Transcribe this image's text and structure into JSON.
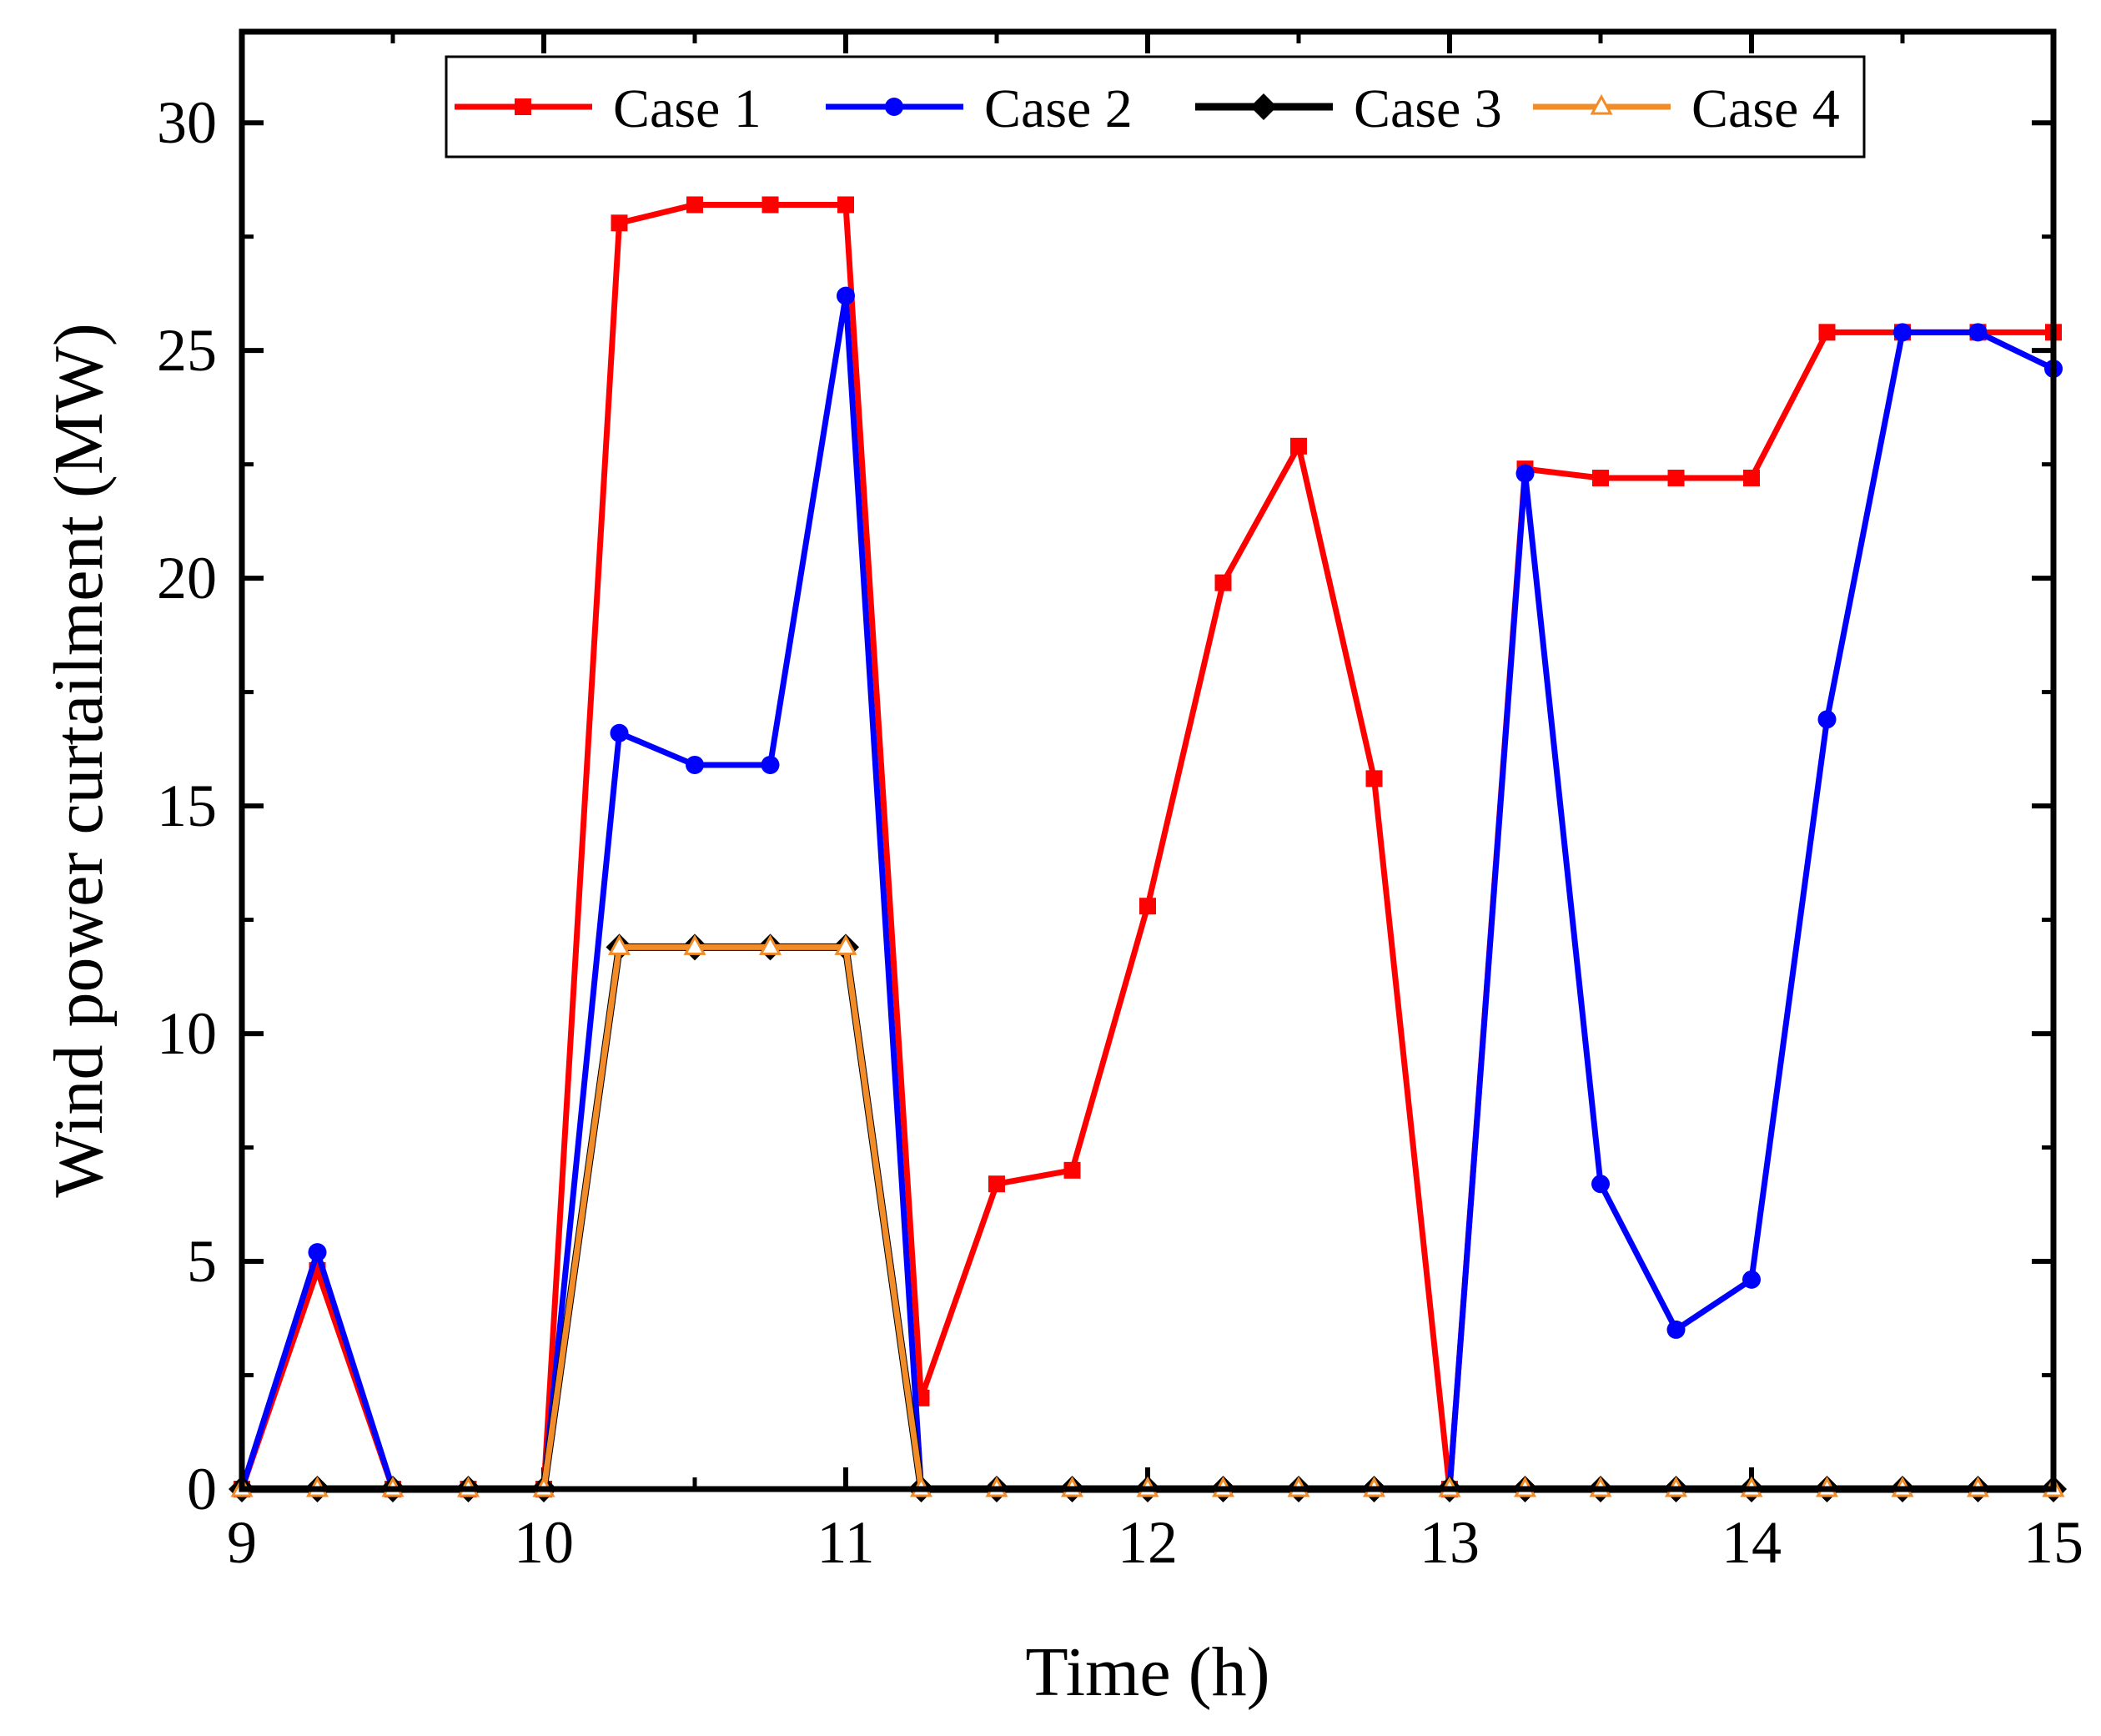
{
  "chart_data": {
    "type": "line",
    "title": "",
    "xlabel": "Time (h)",
    "ylabel": "Wind power curtailment (MW)",
    "xlim": [
      9,
      15
    ],
    "ylim": [
      0,
      32
    ],
    "xticks": [
      9,
      10,
      11,
      12,
      13,
      14,
      15
    ],
    "yticks": [
      0,
      5,
      10,
      15,
      20,
      25,
      30
    ],
    "grid": false,
    "legend_position": "top",
    "x": [
      9,
      9.25,
      9.5,
      9.75,
      10,
      10.25,
      10.5,
      10.75,
      11,
      11.25,
      11.5,
      11.75,
      12,
      12.25,
      12.5,
      12.75,
      13,
      13.25,
      13.5,
      13.75,
      14,
      14.25,
      14.5,
      14.75,
      15
    ],
    "series": [
      {
        "name": "Case 1",
        "color": "#ff0000",
        "marker": "square",
        "values": [
          0,
          4.8,
          0,
          0,
          0,
          27.8,
          28.2,
          28.2,
          28.2,
          2.0,
          6.7,
          7.0,
          12.8,
          19.9,
          22.9,
          15.6,
          0,
          22.4,
          22.2,
          22.2,
          22.2,
          25.4,
          25.4,
          25.4,
          25.4
        ]
      },
      {
        "name": "Case 2",
        "color": "#0000ff",
        "marker": "circle",
        "values": [
          0,
          5.2,
          0,
          0,
          0,
          16.6,
          15.9,
          15.9,
          26.2,
          0,
          0,
          0,
          0,
          0,
          0,
          0,
          0,
          22.3,
          6.7,
          3.5,
          4.6,
          16.9,
          25.4,
          25.4,
          24.6
        ]
      },
      {
        "name": "Case 3",
        "color": "#000000",
        "marker": "diamond",
        "values": [
          0,
          0,
          0,
          0,
          0,
          11.9,
          11.9,
          11.9,
          11.9,
          0,
          0,
          0,
          0,
          0,
          0,
          0,
          0,
          0,
          0,
          0,
          0,
          0,
          0,
          0,
          0
        ]
      },
      {
        "name": "Case 4",
        "color": "#f28c28",
        "marker": "triangle",
        "values": [
          0,
          0,
          0,
          0,
          0,
          11.9,
          11.9,
          11.9,
          11.9,
          0,
          0,
          0,
          0,
          0,
          0,
          0,
          0,
          0,
          0,
          0,
          0,
          0,
          0,
          0,
          0
        ]
      }
    ]
  }
}
